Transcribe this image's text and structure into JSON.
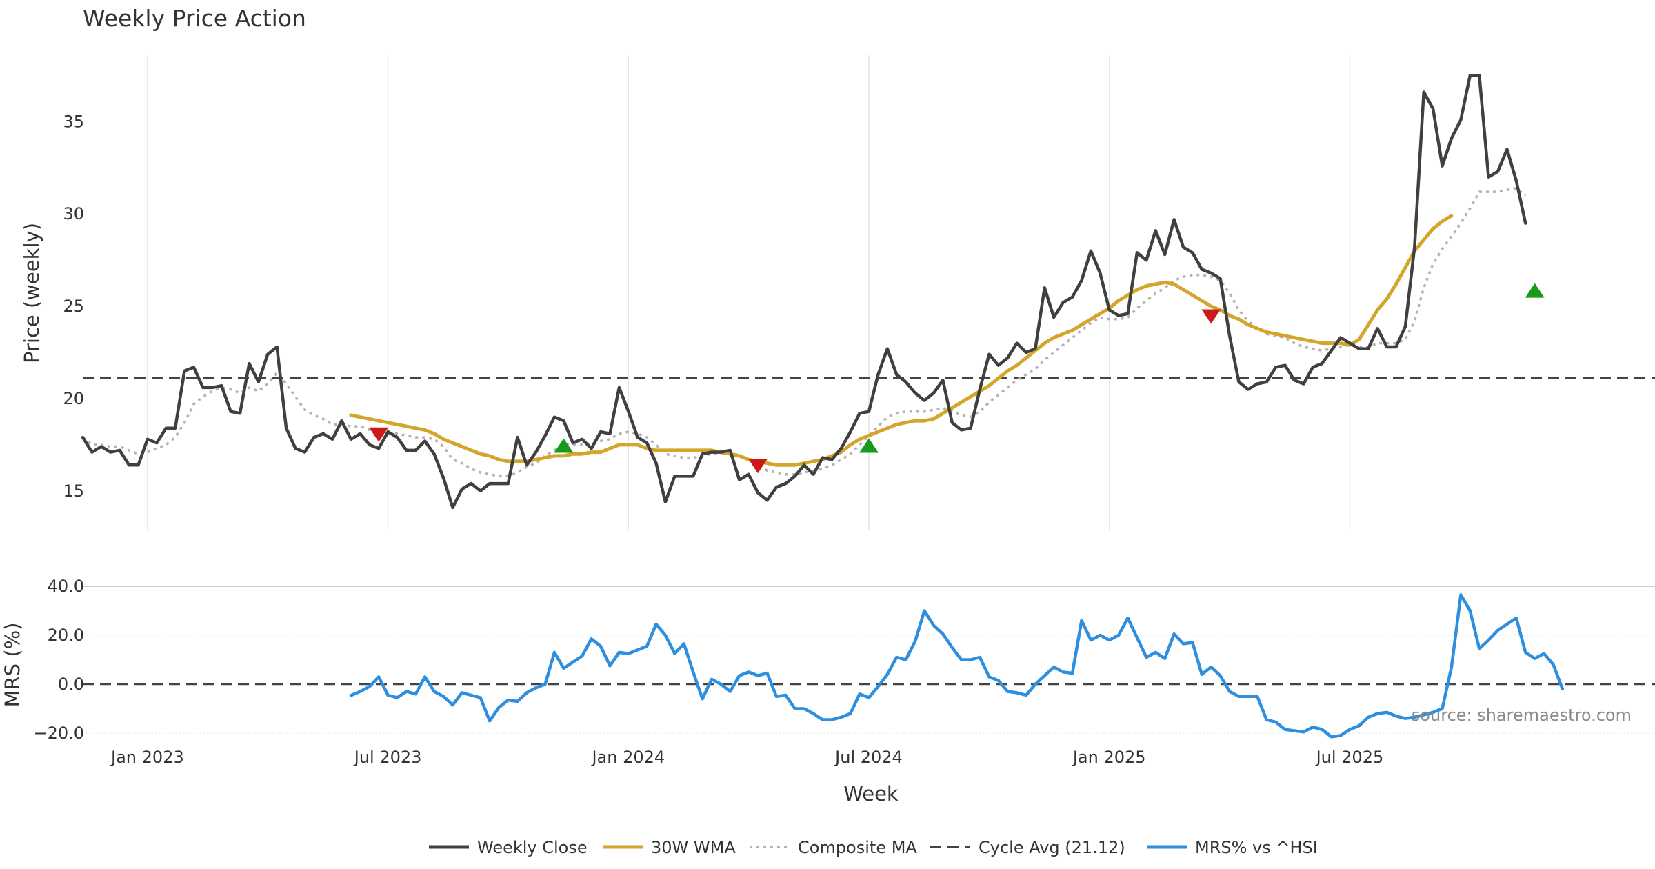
{
  "chart_data": {
    "type": "line",
    "title": "Weekly Price Action",
    "xlabel": "Week",
    "x_ticks": [
      "Jan 2023",
      "Jul 2023",
      "Jan 2024",
      "Jul 2024",
      "Jan 2025",
      "Jul 2025"
    ],
    "x_tick_weeks": [
      3,
      29,
      55,
      81,
      107,
      133
    ],
    "week_range": [
      -4,
      166
    ],
    "price_panel": {
      "ylabel": "Price (weekly)",
      "ylim": [
        12.9,
        38.6
      ],
      "yticks": [
        15,
        20,
        25,
        30,
        35
      ],
      "grid": "vertical",
      "series": [
        {
          "name": "Weekly Close",
          "color": "#404040",
          "start_week": -4,
          "values": [
            17.9,
            17.1,
            17.4,
            17.1,
            17.2,
            16.4,
            16.4,
            17.8,
            17.6,
            18.4,
            18.4,
            21.5,
            21.7,
            20.6,
            20.6,
            20.7,
            19.3,
            19.2,
            21.9,
            20.9,
            22.4,
            22.8,
            18.4,
            17.3,
            17.1,
            17.9,
            18.1,
            17.8,
            18.8,
            17.8,
            18.1,
            17.5,
            17.3,
            18.2,
            17.9,
            17.2,
            17.2,
            17.7,
            17.0,
            15.7,
            14.1,
            15.1,
            15.4,
            15.0,
            15.4,
            15.4,
            15.4,
            17.9,
            16.4,
            17.1,
            18.0,
            19.0,
            18.8,
            17.6,
            17.8,
            17.3,
            18.2,
            18.1,
            20.6,
            19.3,
            17.9,
            17.6,
            16.5,
            14.4,
            15.8,
            15.8,
            15.8,
            17.0,
            17.1,
            17.1,
            17.2,
            15.6,
            15.9,
            14.9,
            14.5,
            15.2,
            15.4,
            15.8,
            16.4,
            15.9,
            16.8,
            16.7,
            17.3,
            18.2,
            19.2,
            19.3,
            21.3,
            22.7,
            21.3,
            20.9,
            20.3,
            19.9,
            20.3,
            21.0,
            18.7,
            18.3,
            18.4,
            20.5,
            22.4,
            21.8,
            22.2,
            23.0,
            22.5,
            22.7,
            26.0,
            24.4,
            25.2,
            25.5,
            26.4,
            28.0,
            26.8,
            24.8,
            24.5,
            24.6,
            27.9,
            27.5,
            29.1,
            27.8,
            29.7,
            28.2,
            27.9,
            27.0,
            26.8,
            26.5,
            23.4,
            20.9,
            20.5,
            20.8,
            20.9,
            21.7,
            21.8,
            21.0,
            20.8,
            21.7,
            21.9,
            22.6,
            23.3,
            23.0,
            22.7,
            22.7,
            23.8,
            22.8,
            22.8,
            23.9,
            28.2,
            36.6,
            35.7,
            32.6,
            34.1,
            35.1,
            37.5,
            37.5,
            32.0,
            32.3,
            33.5,
            31.8,
            29.5
          ]
        },
        {
          "name": "30W WMA",
          "color": "#d4a52b",
          "start_week": 25,
          "values": [
            19.1,
            19.0,
            18.9,
            18.8,
            18.7,
            18.6,
            18.5,
            18.4,
            18.3,
            18.1,
            17.8,
            17.6,
            17.4,
            17.2,
            17.0,
            16.9,
            16.7,
            16.6,
            16.6,
            16.6,
            16.7,
            16.8,
            16.9,
            16.9,
            17.0,
            17.0,
            17.1,
            17.1,
            17.3,
            17.5,
            17.5,
            17.5,
            17.3,
            17.2,
            17.2,
            17.2,
            17.2,
            17.2,
            17.2,
            17.2,
            17.1,
            17.0,
            16.9,
            16.7,
            16.6,
            16.5,
            16.4,
            16.4,
            16.4,
            16.5,
            16.6,
            16.7,
            16.9,
            17.1,
            17.5,
            17.8,
            18.0,
            18.2,
            18.4,
            18.6,
            18.7,
            18.8,
            18.8,
            18.9,
            19.2,
            19.5,
            19.8,
            20.1,
            20.4,
            20.7,
            21.1,
            21.5,
            21.8,
            22.2,
            22.6,
            23.0,
            23.3,
            23.5,
            23.7,
            24.0,
            24.3,
            24.6,
            24.9,
            25.3,
            25.6,
            25.9,
            26.1,
            26.2,
            26.3,
            26.2,
            25.9,
            25.6,
            25.3,
            25.0,
            24.8,
            24.5,
            24.3,
            24.0,
            23.8,
            23.6,
            23.5,
            23.4,
            23.3,
            23.2,
            23.1,
            23.0,
            23.0,
            23.0,
            22.9,
            23.2,
            24.0,
            24.8,
            25.4,
            26.2,
            27.1,
            28.0,
            28.6,
            29.2,
            29.6,
            29.9
          ]
        },
        {
          "name": "Composite MA",
          "color": "#b3b3b3",
          "dash": "dotted",
          "start_week": -4,
          "values": [
            17.9,
            17.5,
            17.5,
            17.4,
            17.4,
            17.2,
            17.0,
            17.1,
            17.3,
            17.5,
            17.9,
            18.7,
            19.7,
            20.1,
            20.4,
            20.6,
            20.5,
            20.3,
            20.6,
            20.4,
            20.8,
            21.4,
            20.8,
            20.1,
            19.4,
            19.1,
            18.9,
            18.6,
            18.6,
            18.5,
            18.5,
            18.3,
            18.2,
            18.1,
            18.1,
            18.0,
            17.9,
            17.9,
            17.8,
            17.4,
            16.7,
            16.5,
            16.2,
            16.0,
            15.9,
            15.8,
            15.8,
            16.0,
            16.3,
            16.5,
            16.9,
            17.2,
            17.5,
            17.5,
            17.5,
            17.5,
            17.7,
            17.8,
            18.1,
            18.2,
            18.1,
            17.9,
            17.5,
            17.0,
            16.9,
            16.8,
            16.8,
            16.9,
            17.0,
            17.0,
            17.1,
            16.9,
            16.7,
            16.4,
            16.1,
            16.0,
            15.9,
            15.9,
            16.0,
            16.1,
            16.2,
            16.4,
            16.7,
            17.0,
            17.5,
            18.0,
            18.5,
            19.0,
            19.2,
            19.3,
            19.3,
            19.3,
            19.4,
            19.5,
            19.3,
            19.1,
            19.0,
            19.3,
            19.8,
            20.2,
            20.6,
            21.0,
            21.3,
            21.6,
            22.1,
            22.5,
            22.9,
            23.3,
            23.7,
            24.1,
            24.4,
            24.3,
            24.3,
            24.4,
            24.9,
            25.3,
            25.7,
            26.0,
            26.4,
            26.6,
            26.7,
            26.7,
            26.6,
            26.4,
            25.7,
            24.8,
            24.2,
            23.8,
            23.5,
            23.4,
            23.3,
            23.0,
            22.8,
            22.7,
            22.6,
            22.7,
            22.8,
            22.9,
            22.8,
            22.8,
            23.0,
            23.0,
            23.0,
            23.2,
            24.2,
            26.0,
            27.3,
            28.1,
            28.8,
            29.5,
            30.3,
            31.2,
            31.2,
            31.2,
            31.3,
            31.4,
            31.0
          ]
        },
        {
          "name": "Cycle Avg (21.12)",
          "color": "#444444",
          "dash": "dashed",
          "value": 21.12
        }
      ],
      "signals": [
        {
          "type": "sell",
          "week": 28,
          "price": 18.1,
          "color": "#cc1a1a"
        },
        {
          "type": "buy",
          "week": 48,
          "price": 17.4,
          "color": "#1a9a1a"
        },
        {
          "type": "sell",
          "week": 69,
          "price": 16.4,
          "color": "#cc1a1a"
        },
        {
          "type": "buy",
          "week": 81,
          "price": 17.4,
          "color": "#1a9a1a"
        },
        {
          "type": "sell",
          "week": 118,
          "price": 24.5,
          "color": "#cc1a1a"
        },
        {
          "type": "buy",
          "week": 153,
          "price": 25.8,
          "color": "#1a9a1a"
        }
      ]
    },
    "mrs_panel": {
      "ylabel": "MRS (%)",
      "ylim": [
        -20,
        40
      ],
      "yticks": [
        -20,
        0,
        20,
        40
      ],
      "ytick_labels": [
        "−20.0",
        "0.0",
        "20.0",
        "40.0"
      ],
      "series": [
        {
          "name": "MRS% vs ^HSI",
          "color": "#2e8fe0",
          "start_week": 25,
          "values": [
            -4.6,
            -3,
            -1,
            3,
            -4.5,
            -5.5,
            -3,
            -4,
            3,
            -3,
            -5,
            -8.5,
            -3.5,
            -4.5,
            -5.5,
            -15,
            -9.5,
            -6.5,
            -7,
            -3.5,
            -1.5,
            0,
            13,
            6.5,
            9,
            11.5,
            18.5,
            15.5,
            7.5,
            13,
            12.5,
            14,
            15.5,
            24.5,
            20,
            12.5,
            16.5,
            5,
            -6,
            2,
            0,
            -3,
            3.5,
            5,
            3.5,
            4.5,
            -5,
            -4.5,
            -10,
            -10,
            -12,
            -14.5,
            -14.5,
            -13.5,
            -12,
            -4,
            -5.5,
            -1,
            4,
            11,
            10,
            17.5,
            30,
            24,
            20.5,
            15,
            10,
            10,
            11,
            3,
            1.5,
            -3,
            -3.5,
            -4.5,
            0,
            3.5,
            7,
            5,
            4.5,
            26,
            18,
            20,
            18,
            20,
            27,
            19,
            11,
            13,
            10.5,
            20.5,
            16.5,
            17,
            4,
            7,
            3.5,
            -3,
            -5,
            -5,
            -5,
            -14.5,
            -15.5,
            -18.5,
            -19,
            -19.5,
            -17.5,
            -18.5,
            -21.5,
            -21,
            -18.5,
            -17,
            -13.5,
            -12,
            -11.5,
            -13,
            -14,
            -13.5,
            -12.5,
            -11.5,
            -10,
            7,
            36.5,
            30,
            14.5,
            18,
            22,
            24.5,
            27,
            13,
            10.5,
            12.5,
            8,
            -2
          ]
        },
        {
          "name": "zero-line",
          "color": "#444444",
          "dash": "dashed",
          "value": 0
        }
      ]
    },
    "legend": {
      "placement": "bottom-center",
      "entries": [
        {
          "label": "Weekly Close",
          "style": "solid",
          "color": "#404040"
        },
        {
          "label": "30W WMA",
          "style": "solid",
          "color": "#d4a52b"
        },
        {
          "label": "Composite MA",
          "style": "dotted",
          "color": "#b3b3b3"
        },
        {
          "label": "Cycle Avg (21.12)",
          "style": "dashed",
          "color": "#444444"
        },
        {
          "label": "MRS% vs ^HSI",
          "style": "solid",
          "color": "#2e8fe0"
        }
      ]
    },
    "annotation": "source: sharemaestro.com"
  }
}
